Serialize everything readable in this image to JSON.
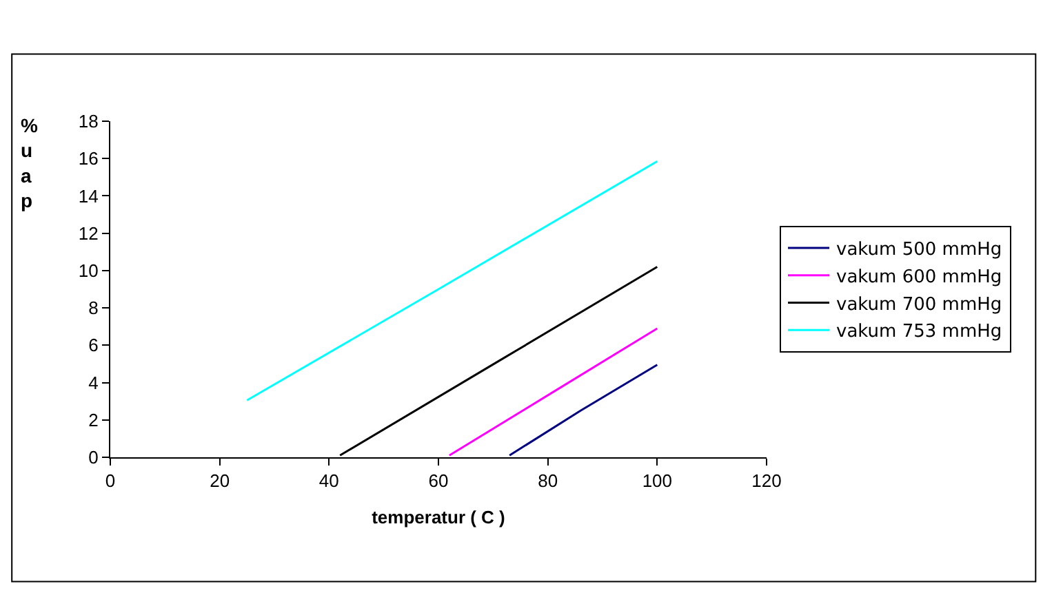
{
  "chart_data": {
    "type": "line",
    "xlabel": "temperatur ( C )",
    "ylabel": "%uap",
    "xlim": [
      0,
      120
    ],
    "xticks": [
      0,
      20,
      40,
      60,
      80,
      100,
      120
    ],
    "ylim": [
      0,
      18
    ],
    "yticks": [
      0,
      2,
      4,
      6,
      8,
      10,
      12,
      14,
      16,
      18
    ],
    "legend": "right",
    "marker": "none",
    "line_style": "solid",
    "series": [
      {
        "name": "vakum 500 mmHg",
        "color": "#000080",
        "x": [
          73,
          86,
          100
        ],
        "values": [
          0.1,
          2.5,
          4.95
        ]
      },
      {
        "name": "vakum 600 mmHg",
        "color": "#ff00ff",
        "x": [
          62,
          81,
          100
        ],
        "values": [
          0.1,
          3.5,
          6.9
        ]
      },
      {
        "name": "vakum 700 mmHg",
        "color": "#000000",
        "x": [
          42,
          71,
          100
        ],
        "values": [
          0.1,
          5.15,
          10.2
        ]
      },
      {
        "name": "vakum 753 mmHg",
        "color": "#00ffff",
        "x": [
          25,
          60,
          100
        ],
        "values": [
          3.05,
          9.0,
          15.85
        ]
      }
    ]
  }
}
